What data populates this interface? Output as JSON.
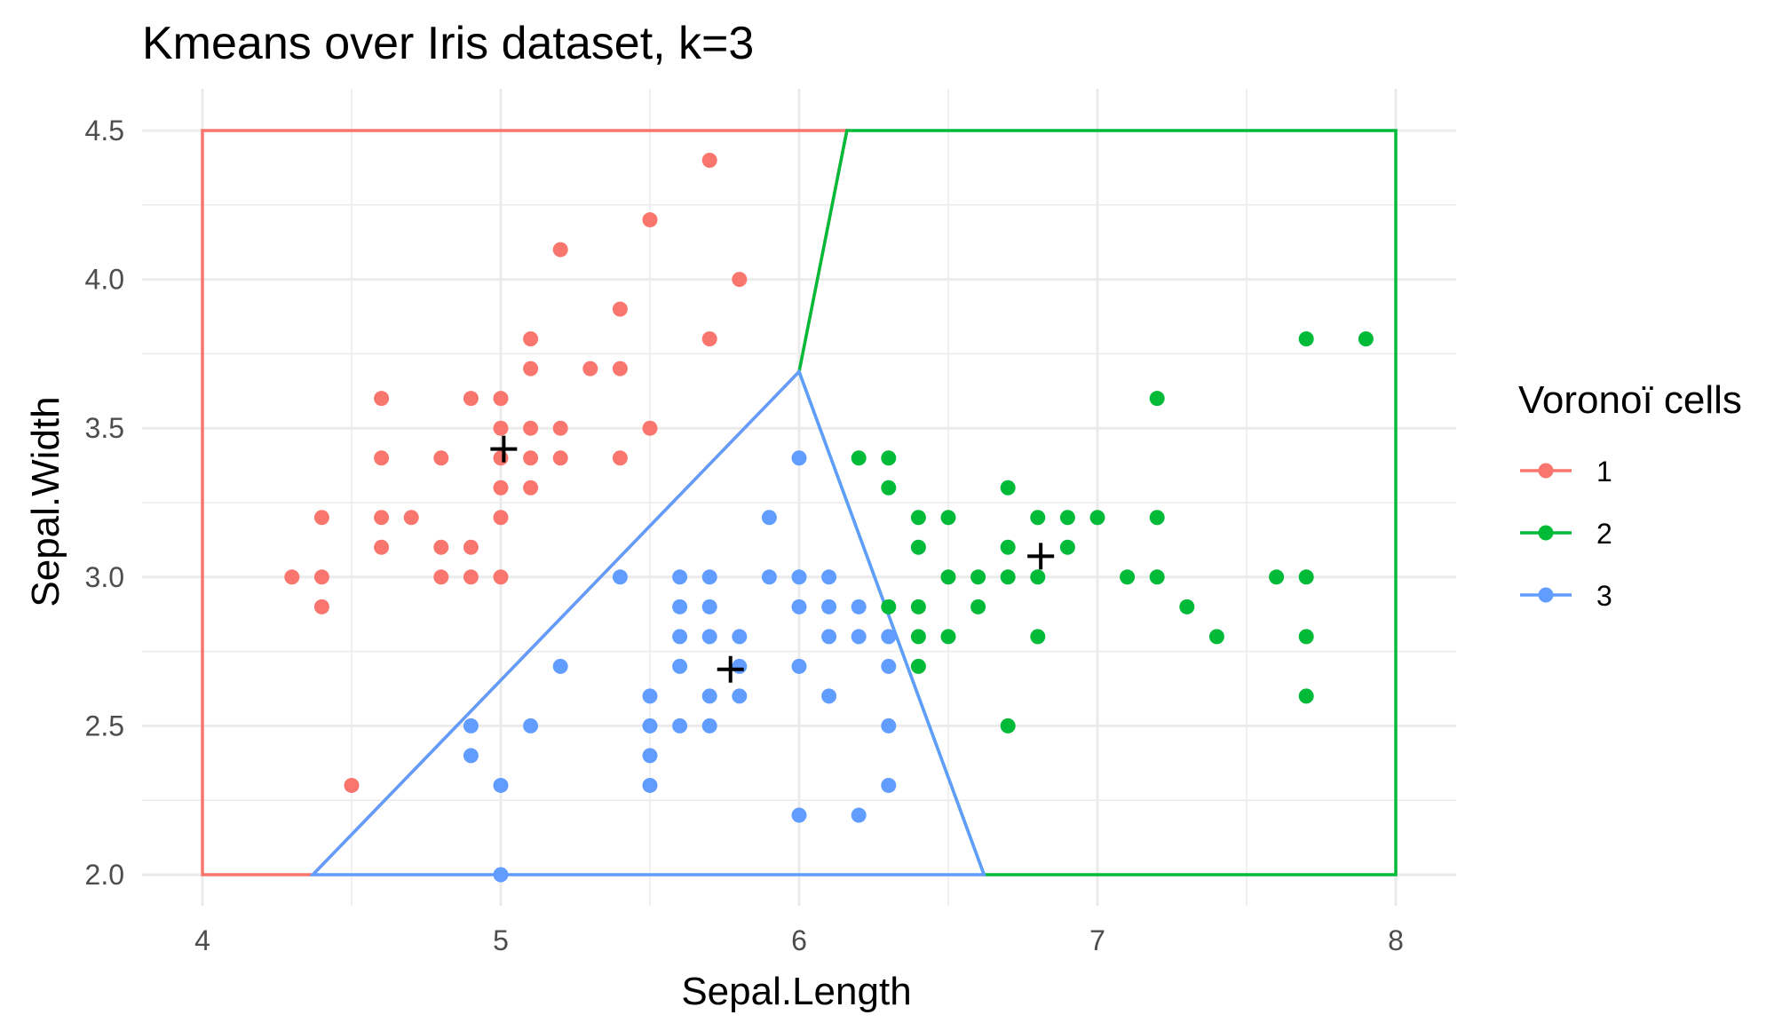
{
  "chart_data": {
    "type": "scatter",
    "title": "Kmeans over Iris dataset, k=3",
    "xlabel": "Sepal.Length",
    "ylabel": "Sepal.Width",
    "xlim": [
      4,
      8
    ],
    "ylim": [
      2.0,
      4.5
    ],
    "x_ticks": [
      "4",
      "5",
      "6",
      "7",
      "8"
    ],
    "y_ticks": [
      "2.0",
      "2.5",
      "3.0",
      "3.5",
      "4.0",
      "4.5"
    ],
    "grid": true,
    "legend": {
      "title": "Voronoï cells",
      "position": "right",
      "entries": [
        "1",
        "2",
        "3"
      ]
    },
    "colors": {
      "1": "#F8766D",
      "2": "#00BA38",
      "3": "#619CFF",
      "centroid": "#000000"
    },
    "centroids": [
      {
        "cluster": "1",
        "x": 5.01,
        "y": 3.43
      },
      {
        "cluster": "2",
        "x": 6.81,
        "y": 3.07
      },
      {
        "cluster": "3",
        "x": 5.77,
        "y": 2.69
      }
    ],
    "voronoi_cells": [
      {
        "cluster": "1",
        "polygon": [
          [
            4.0,
            2.0
          ],
          [
            4.37,
            2.0
          ],
          [
            6.0,
            3.69
          ],
          [
            6.16,
            4.5
          ],
          [
            4.0,
            4.5
          ]
        ]
      },
      {
        "cluster": "2",
        "polygon": [
          [
            6.16,
            4.5
          ],
          [
            8.0,
            4.5
          ],
          [
            8.0,
            2.0
          ],
          [
            6.62,
            2.0
          ],
          [
            6.0,
            3.69
          ]
        ]
      },
      {
        "cluster": "3",
        "polygon": [
          [
            4.37,
            2.0
          ],
          [
            6.62,
            2.0
          ],
          [
            6.0,
            3.69
          ]
        ]
      }
    ],
    "series": [
      {
        "name": "1",
        "points": [
          [
            5.7,
            4.4
          ],
          [
            5.5,
            4.2
          ],
          [
            5.2,
            4.1
          ],
          [
            5.8,
            4.0
          ],
          [
            5.4,
            3.9
          ],
          [
            5.1,
            3.8
          ],
          [
            5.7,
            3.8
          ],
          [
            5.1,
            3.7
          ],
          [
            5.3,
            3.7
          ],
          [
            5.4,
            3.7
          ],
          [
            4.6,
            3.6
          ],
          [
            4.9,
            3.6
          ],
          [
            5.0,
            3.6
          ],
          [
            5.0,
            3.5
          ],
          [
            5.1,
            3.5
          ],
          [
            5.2,
            3.5
          ],
          [
            5.5,
            3.5
          ],
          [
            4.6,
            3.4
          ],
          [
            4.8,
            3.4
          ],
          [
            5.0,
            3.4
          ],
          [
            5.1,
            3.4
          ],
          [
            5.2,
            3.4
          ],
          [
            5.4,
            3.4
          ],
          [
            5.0,
            3.3
          ],
          [
            5.1,
            3.3
          ],
          [
            4.4,
            3.2
          ],
          [
            4.6,
            3.2
          ],
          [
            4.7,
            3.2
          ],
          [
            5.0,
            3.2
          ],
          [
            4.6,
            3.1
          ],
          [
            4.8,
            3.1
          ],
          [
            4.9,
            3.1
          ],
          [
            4.3,
            3.0
          ],
          [
            4.4,
            3.0
          ],
          [
            4.8,
            3.0
          ],
          [
            4.9,
            3.0
          ],
          [
            5.0,
            3.0
          ],
          [
            4.4,
            2.9
          ],
          [
            4.5,
            2.3
          ]
        ]
      },
      {
        "name": "2",
        "points": [
          [
            7.7,
            3.8
          ],
          [
            7.9,
            3.8
          ],
          [
            7.2,
            3.6
          ],
          [
            6.2,
            3.4
          ],
          [
            6.3,
            3.4
          ],
          [
            6.3,
            3.3
          ],
          [
            6.7,
            3.3
          ],
          [
            6.4,
            3.2
          ],
          [
            6.5,
            3.2
          ],
          [
            6.8,
            3.2
          ],
          [
            6.9,
            3.2
          ],
          [
            7.0,
            3.2
          ],
          [
            7.2,
            3.2
          ],
          [
            6.4,
            3.1
          ],
          [
            6.7,
            3.1
          ],
          [
            6.9,
            3.1
          ],
          [
            6.5,
            3.0
          ],
          [
            6.6,
            3.0
          ],
          [
            6.7,
            3.0
          ],
          [
            6.8,
            3.0
          ],
          [
            7.1,
            3.0
          ],
          [
            7.2,
            3.0
          ],
          [
            7.6,
            3.0
          ],
          [
            7.7,
            3.0
          ],
          [
            6.3,
            2.9
          ],
          [
            6.4,
            2.9
          ],
          [
            6.6,
            2.9
          ],
          [
            7.3,
            2.9
          ],
          [
            6.4,
            2.8
          ],
          [
            6.5,
            2.8
          ],
          [
            6.8,
            2.8
          ],
          [
            7.4,
            2.8
          ],
          [
            7.7,
            2.8
          ],
          [
            6.4,
            2.7
          ],
          [
            6.7,
            2.5
          ],
          [
            7.7,
            2.6
          ]
        ]
      },
      {
        "name": "3",
        "points": [
          [
            6.0,
            3.4
          ],
          [
            5.9,
            3.2
          ],
          [
            5.4,
            3.0
          ],
          [
            5.6,
            3.0
          ],
          [
            5.7,
            3.0
          ],
          [
            5.9,
            3.0
          ],
          [
            6.0,
            3.0
          ],
          [
            6.1,
            3.0
          ],
          [
            5.6,
            2.9
          ],
          [
            5.7,
            2.9
          ],
          [
            6.0,
            2.9
          ],
          [
            6.1,
            2.9
          ],
          [
            6.2,
            2.9
          ],
          [
            5.6,
            2.8
          ],
          [
            5.7,
            2.8
          ],
          [
            5.8,
            2.8
          ],
          [
            6.1,
            2.8
          ],
          [
            6.2,
            2.8
          ],
          [
            6.3,
            2.8
          ],
          [
            5.2,
            2.7
          ],
          [
            5.6,
            2.7
          ],
          [
            5.8,
            2.7
          ],
          [
            6.0,
            2.7
          ],
          [
            6.3,
            2.7
          ],
          [
            5.5,
            2.6
          ],
          [
            5.7,
            2.6
          ],
          [
            5.8,
            2.6
          ],
          [
            6.1,
            2.6
          ],
          [
            4.9,
            2.5
          ],
          [
            5.1,
            2.5
          ],
          [
            5.5,
            2.5
          ],
          [
            5.6,
            2.5
          ],
          [
            5.7,
            2.5
          ],
          [
            6.3,
            2.5
          ],
          [
            4.9,
            2.4
          ],
          [
            5.5,
            2.4
          ],
          [
            5.0,
            2.3
          ],
          [
            5.5,
            2.3
          ],
          [
            6.3,
            2.3
          ],
          [
            6.0,
            2.2
          ],
          [
            6.2,
            2.2
          ],
          [
            5.0,
            2.0
          ]
        ]
      }
    ]
  }
}
